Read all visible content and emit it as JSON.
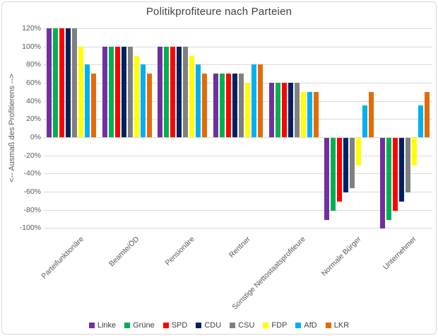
{
  "chart": {
    "border_color": "#d9d9d9",
    "gridline_color": "#d9d9d9",
    "background_color": "#ffffff",
    "title_color": "#404040",
    "axis_text_color": "#595959"
  },
  "chart_data": {
    "type": "bar",
    "title": "Politikprofiteure nach Parteien",
    "xlabel": "",
    "ylabel": "<-- Ausmaß des Profitierens  -->",
    "ylim": [
      -100,
      120
    ],
    "y_tick_step": 20,
    "y_tick_labels": [
      "120%",
      "100%",
      "80%",
      "60%",
      "40%",
      "20%",
      "0%",
      "-20%",
      "-40%",
      "-60%",
      "-80%",
      "-100%"
    ],
    "grid": true,
    "legend_position": "bottom",
    "categories": [
      "Parteifunktionäre",
      "Beamte/ÖD",
      "Pensionäre",
      "Rentner",
      "Sonstige Nettostaatsprofiteure",
      "Normale Bürger",
      "Unternehmer"
    ],
    "series": [
      {
        "name": "Linke",
        "color": "#7030A0",
        "values": [
          120,
          100,
          100,
          70,
          60,
          -90,
          -100
        ]
      },
      {
        "name": "Grüne",
        "color": "#00B050",
        "values": [
          120,
          100,
          100,
          70,
          60,
          -80,
          -90
        ]
      },
      {
        "name": "SPD",
        "color": "#FF0000",
        "values": [
          120,
          100,
          100,
          70,
          60,
          -70,
          -80
        ]
      },
      {
        "name": "CDU",
        "color": "#002060",
        "values": [
          120,
          100,
          100,
          70,
          60,
          -60,
          -70
        ]
      },
      {
        "name": "CSU",
        "color": "#808080",
        "values": [
          120,
          100,
          100,
          70,
          60,
          -55,
          -60
        ]
      },
      {
        "name": "FDP",
        "color": "#FFFF00",
        "values": [
          100,
          90,
          90,
          60,
          50,
          -30,
          -30
        ]
      },
      {
        "name": "AfD",
        "color": "#00B0F0",
        "values": [
          80,
          80,
          80,
          80,
          50,
          35,
          35
        ]
      },
      {
        "name": "LKR",
        "color": "#E36C09",
        "values": [
          70,
          70,
          70,
          80,
          50,
          50,
          50
        ]
      }
    ]
  }
}
